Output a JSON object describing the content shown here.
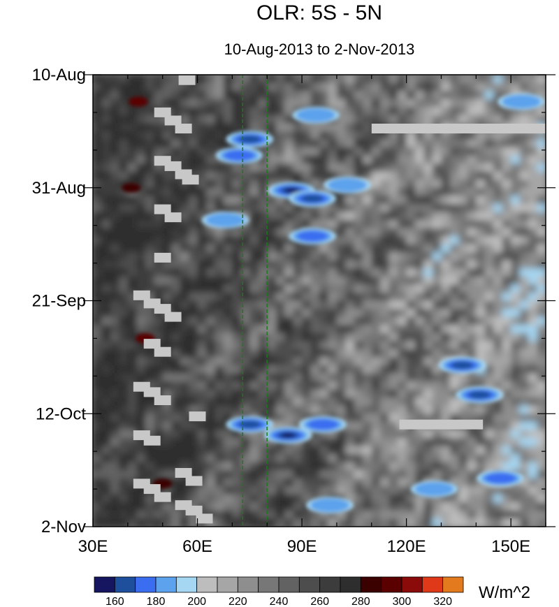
{
  "chart_data": {
    "type": "heatmap",
    "title": "OLR: 5S - 5N",
    "subtitle": "10-Aug-2013 to 2-Nov-2013",
    "x_axis": {
      "range": [
        30,
        160
      ],
      "ticks": [
        {
          "value": 30,
          "label": "30E"
        },
        {
          "value": 60,
          "label": "60E"
        },
        {
          "value": 90,
          "label": "90E"
        },
        {
          "value": 120,
          "label": "120E"
        },
        {
          "value": 150,
          "label": "150E"
        }
      ],
      "minor_step": 10
    },
    "y_axis": {
      "range_days": [
        0,
        84
      ],
      "ticks": [
        {
          "day": 0,
          "label": "10-Aug"
        },
        {
          "day": 21,
          "label": "31-Aug"
        },
        {
          "day": 42,
          "label": "21-Sep"
        },
        {
          "day": 63,
          "label": "12-Oct"
        },
        {
          "day": 84,
          "label": "2-Nov"
        }
      ],
      "minor_step_days": 7,
      "direction": "time increases downward"
    },
    "reference_lines": [
      {
        "lon": 73,
        "style": "dashed",
        "color": "#1a7a1a"
      },
      {
        "lon": 80,
        "style": "dashed",
        "color": "#1a7a1a"
      }
    ],
    "colorbar": {
      "units": "W/m^2",
      "levels": [
        150,
        160,
        170,
        180,
        190,
        200,
        210,
        220,
        230,
        240,
        250,
        260,
        270,
        280,
        290,
        300,
        310,
        320,
        330
      ],
      "labels": [
        160,
        180,
        200,
        220,
        240,
        260,
        280,
        300,
        320
      ],
      "colors": [
        "#151560",
        "#1e4f9c",
        "#3a6df0",
        "#5ca2ec",
        "#a5d6f2",
        "#bdbdbd",
        "#a6a6a6",
        "#8e8e8e",
        "#777777",
        "#626262",
        "#4d4d4d",
        "#3c3c3c",
        "#2e2e2e",
        "#3b0000",
        "#5a0000",
        "#8b0a0a",
        "#e0391a",
        "#e37a1e"
      ]
    },
    "low_olr_features": [
      {
        "lon": 75,
        "day": 12,
        "value": 170
      },
      {
        "lon": 72,
        "day": 15,
        "value": 175
      },
      {
        "lon": 87,
        "day": 21.5,
        "value": 158
      },
      {
        "lon": 93,
        "day": 23,
        "value": 170
      },
      {
        "lon": 93,
        "day": 30,
        "value": 175
      },
      {
        "lon": 68,
        "day": 27,
        "value": 182
      },
      {
        "lon": 94,
        "day": 7.5,
        "value": 185
      },
      {
        "lon": 103,
        "day": 20.5,
        "value": 188
      },
      {
        "lon": 86,
        "day": 67,
        "value": 160
      },
      {
        "lon": 75,
        "day": 65,
        "value": 170
      },
      {
        "lon": 96,
        "day": 65,
        "value": 178
      },
      {
        "lon": 136,
        "day": 54,
        "value": 170
      },
      {
        "lon": 141,
        "day": 59.5,
        "value": 168
      },
      {
        "lon": 147,
        "day": 75,
        "value": 175
      },
      {
        "lon": 128,
        "day": 77,
        "value": 190
      },
      {
        "lon": 98,
        "day": 80,
        "value": 190
      },
      {
        "lon": 153,
        "day": 5,
        "value": 188
      }
    ],
    "high_olr_features": [
      {
        "lon": 43,
        "day": 5,
        "value": 290
      },
      {
        "lon": 45,
        "day": 49,
        "value": 292
      },
      {
        "lon": 41,
        "day": 21,
        "value": 285
      },
      {
        "lon": 50,
        "day": 76,
        "value": 285
      }
    ],
    "missing_data": {
      "color": "#c8c8c8",
      "bars": [
        {
          "lon_start": 110,
          "lon_end": 160,
          "day": 10
        },
        {
          "lon_start": 118,
          "lon_end": 142,
          "day": 65
        }
      ],
      "blocks": [
        {
          "lon": 57,
          "day": 1
        },
        {
          "lon": 50,
          "day": 7
        },
        {
          "lon": 53,
          "day": 8.5
        },
        {
          "lon": 56,
          "day": 10
        },
        {
          "lon": 50,
          "day": 16
        },
        {
          "lon": 53,
          "day": 17
        },
        {
          "lon": 56,
          "day": 18.5
        },
        {
          "lon": 58,
          "day": 19.5
        },
        {
          "lon": 50,
          "day": 25
        },
        {
          "lon": 53,
          "day": 26.5
        },
        {
          "lon": 50,
          "day": 34
        },
        {
          "lon": 44,
          "day": 41
        },
        {
          "lon": 47,
          "day": 42.5
        },
        {
          "lon": 50,
          "day": 43.5
        },
        {
          "lon": 53,
          "day": 45
        },
        {
          "lon": 47,
          "day": 50
        },
        {
          "lon": 50,
          "day": 51.5
        },
        {
          "lon": 44,
          "day": 58
        },
        {
          "lon": 47,
          "day": 59
        },
        {
          "lon": 50,
          "day": 60.5
        },
        {
          "lon": 60,
          "day": 63.5
        },
        {
          "lon": 44,
          "day": 67
        },
        {
          "lon": 47,
          "day": 68
        },
        {
          "lon": 56,
          "day": 74
        },
        {
          "lon": 59,
          "day": 75.5
        },
        {
          "lon": 44,
          "day": 76
        },
        {
          "lon": 47,
          "day": 77
        },
        {
          "lon": 50,
          "day": 78.5
        },
        {
          "lon": 56,
          "day": 80
        },
        {
          "lon": 59,
          "day": 81
        },
        {
          "lon": 62,
          "day": 82.5
        }
      ]
    }
  }
}
